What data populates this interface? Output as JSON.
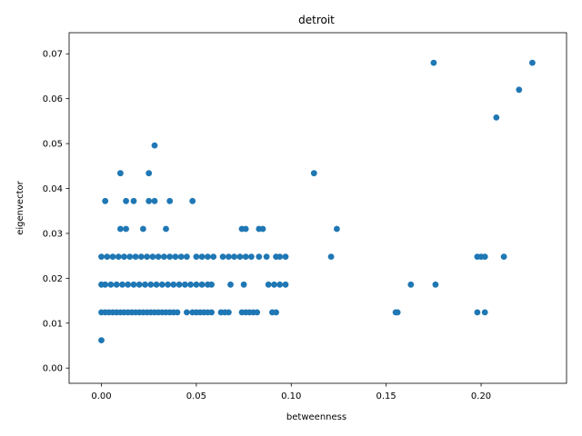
{
  "chart_data": {
    "type": "scatter",
    "title": "detroit",
    "xlabel": "betweenness",
    "ylabel": "eigenvector",
    "xlim": [
      -0.017,
      0.245
    ],
    "ylim": [
      -0.0034,
      0.0747
    ],
    "xticks": [
      0.0,
      0.05,
      0.1,
      0.15,
      0.2
    ],
    "xtick_labels": [
      "0.00",
      "0.05",
      "0.10",
      "0.15",
      "0.20"
    ],
    "yticks": [
      0.0,
      0.01,
      0.02,
      0.03,
      0.04,
      0.05,
      0.06,
      0.07
    ],
    "ytick_labels": [
      "0.00",
      "0.01",
      "0.02",
      "0.03",
      "0.04",
      "0.05",
      "0.06",
      "0.07"
    ],
    "grid": false,
    "color": "#1f77b4",
    "series": [
      {
        "points": [
          [
            0.0,
            0.0062
          ],
          [
            0.0,
            0.0124
          ],
          [
            0.0,
            0.0186
          ],
          [
            0.0,
            0.0248
          ],
          [
            0.002,
            0.0124
          ],
          [
            0.004,
            0.0124
          ],
          [
            0.006,
            0.0124
          ],
          [
            0.008,
            0.0124
          ],
          [
            0.01,
            0.0124
          ],
          [
            0.012,
            0.0124
          ],
          [
            0.014,
            0.0124
          ],
          [
            0.016,
            0.0124
          ],
          [
            0.018,
            0.0124
          ],
          [
            0.02,
            0.0124
          ],
          [
            0.022,
            0.0124
          ],
          [
            0.024,
            0.0124
          ],
          [
            0.026,
            0.0124
          ],
          [
            0.028,
            0.0124
          ],
          [
            0.03,
            0.0124
          ],
          [
            0.032,
            0.0124
          ],
          [
            0.034,
            0.0124
          ],
          [
            0.036,
            0.0124
          ],
          [
            0.038,
            0.0124
          ],
          [
            0.04,
            0.0124
          ],
          [
            0.045,
            0.0124
          ],
          [
            0.048,
            0.0124
          ],
          [
            0.05,
            0.0124
          ],
          [
            0.052,
            0.0124
          ],
          [
            0.054,
            0.0124
          ],
          [
            0.056,
            0.0124
          ],
          [
            0.058,
            0.0124
          ],
          [
            0.063,
            0.0124
          ],
          [
            0.065,
            0.0124
          ],
          [
            0.067,
            0.0124
          ],
          [
            0.074,
            0.0124
          ],
          [
            0.076,
            0.0124
          ],
          [
            0.078,
            0.0124
          ],
          [
            0.08,
            0.0124
          ],
          [
            0.082,
            0.0124
          ],
          [
            0.09,
            0.0124
          ],
          [
            0.092,
            0.0124
          ],
          [
            0.155,
            0.0124
          ],
          [
            0.156,
            0.0124
          ],
          [
            0.198,
            0.0124
          ],
          [
            0.202,
            0.0124
          ],
          [
            0.002,
            0.0186
          ],
          [
            0.005,
            0.0186
          ],
          [
            0.008,
            0.0186
          ],
          [
            0.011,
            0.0186
          ],
          [
            0.014,
            0.0186
          ],
          [
            0.017,
            0.0186
          ],
          [
            0.02,
            0.0186
          ],
          [
            0.023,
            0.0186
          ],
          [
            0.026,
            0.0186
          ],
          [
            0.029,
            0.0186
          ],
          [
            0.032,
            0.0186
          ],
          [
            0.035,
            0.0186
          ],
          [
            0.038,
            0.0186
          ],
          [
            0.041,
            0.0186
          ],
          [
            0.044,
            0.0186
          ],
          [
            0.047,
            0.0186
          ],
          [
            0.05,
            0.0186
          ],
          [
            0.053,
            0.0186
          ],
          [
            0.056,
            0.0186
          ],
          [
            0.058,
            0.0186
          ],
          [
            0.068,
            0.0186
          ],
          [
            0.075,
            0.0186
          ],
          [
            0.088,
            0.0186
          ],
          [
            0.091,
            0.0186
          ],
          [
            0.094,
            0.0186
          ],
          [
            0.097,
            0.0186
          ],
          [
            0.163,
            0.0186
          ],
          [
            0.176,
            0.0186
          ],
          [
            0.003,
            0.0248
          ],
          [
            0.006,
            0.0248
          ],
          [
            0.009,
            0.0248
          ],
          [
            0.012,
            0.0248
          ],
          [
            0.015,
            0.0248
          ],
          [
            0.018,
            0.0248
          ],
          [
            0.021,
            0.0248
          ],
          [
            0.024,
            0.0248
          ],
          [
            0.027,
            0.0248
          ],
          [
            0.03,
            0.0248
          ],
          [
            0.033,
            0.0248
          ],
          [
            0.036,
            0.0248
          ],
          [
            0.039,
            0.0248
          ],
          [
            0.042,
            0.0248
          ],
          [
            0.045,
            0.0248
          ],
          [
            0.05,
            0.0248
          ],
          [
            0.053,
            0.0248
          ],
          [
            0.056,
            0.0248
          ],
          [
            0.059,
            0.0248
          ],
          [
            0.064,
            0.0248
          ],
          [
            0.067,
            0.0248
          ],
          [
            0.07,
            0.0248
          ],
          [
            0.073,
            0.0248
          ],
          [
            0.076,
            0.0248
          ],
          [
            0.079,
            0.0248
          ],
          [
            0.083,
            0.0248
          ],
          [
            0.087,
            0.0248
          ],
          [
            0.092,
            0.0248
          ],
          [
            0.094,
            0.0248
          ],
          [
            0.097,
            0.0248
          ],
          [
            0.121,
            0.0248
          ],
          [
            0.198,
            0.0248
          ],
          [
            0.2,
            0.0248
          ],
          [
            0.202,
            0.0248
          ],
          [
            0.212,
            0.0248
          ],
          [
            0.01,
            0.031
          ],
          [
            0.013,
            0.031
          ],
          [
            0.022,
            0.031
          ],
          [
            0.034,
            0.031
          ],
          [
            0.074,
            0.031
          ],
          [
            0.076,
            0.031
          ],
          [
            0.083,
            0.031
          ],
          [
            0.085,
            0.031
          ],
          [
            0.124,
            0.031
          ],
          [
            0.002,
            0.0372
          ],
          [
            0.013,
            0.0372
          ],
          [
            0.017,
            0.0372
          ],
          [
            0.025,
            0.0372
          ],
          [
            0.028,
            0.0372
          ],
          [
            0.036,
            0.0372
          ],
          [
            0.048,
            0.0372
          ],
          [
            0.01,
            0.0434
          ],
          [
            0.025,
            0.0434
          ],
          [
            0.112,
            0.0434
          ],
          [
            0.028,
            0.0496
          ],
          [
            0.208,
            0.0558
          ],
          [
            0.22,
            0.062
          ],
          [
            0.175,
            0.068
          ],
          [
            0.227,
            0.068
          ]
        ]
      }
    ]
  }
}
